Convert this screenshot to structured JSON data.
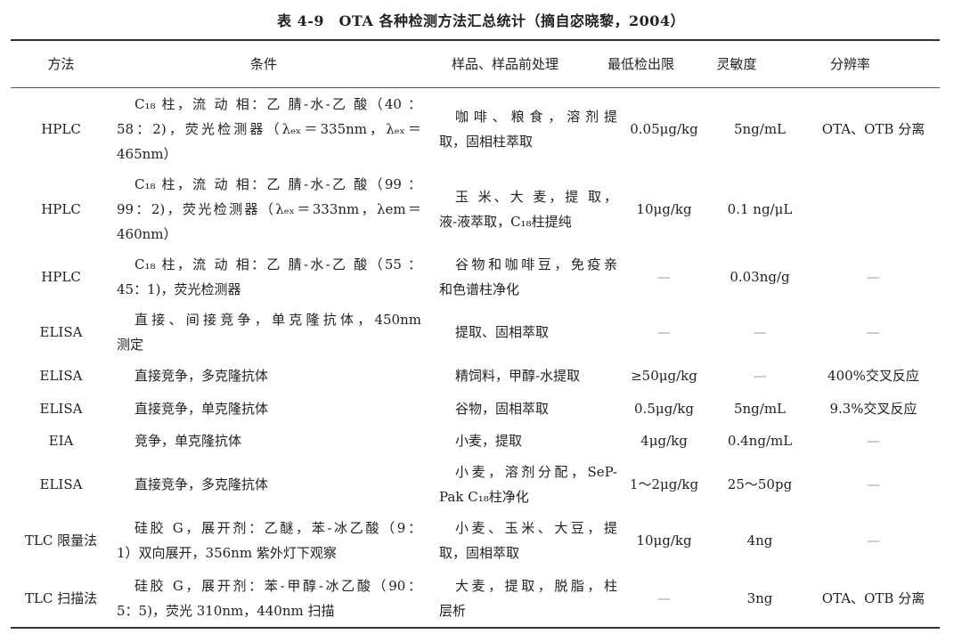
{
  "title": "表 4-9　OTA 各种检测方法汇总统计（摘自宓晓黎，2004）",
  "headers": [
    "方法",
    "条件",
    "样品、样品前处理",
    "最低检出限",
    "灵敏度",
    "分辨率"
  ],
  "rows": [
    {
      "method": "HPLC",
      "condition": [
        "C₁₈ 柱，流 动 相：乙 腈-水-乙 酸（40 ：",
        "58：2)，荧光检测器（λₑₓ＝335nm，λₑₓ＝",
        "465nm）"
      ],
      "sample": [
        "咖啡、粮食，溶剂提",
        "取，固相柱萃取"
      ],
      "lod": "0.05μg/kg",
      "sensitivity": "5ng/mL",
      "resolution": "OTA、OTB 分离"
    },
    {
      "method": "HPLC",
      "condition": [
        "C₁₈ 柱，流 动 相：乙 腈-水-乙 酸（99 ：",
        "99：2)，荧光检测器（λₑₓ＝333nm，λem＝",
        "460nm）"
      ],
      "sample": [
        "玉 米、大 麦，提 取，",
        "液-液萃取，C₁₈柱提纯"
      ],
      "lod": "10μg/kg",
      "sensitivity": "0.1 ng/μL",
      "resolution": ""
    },
    {
      "method": "HPLC",
      "condition": [
        "C₁₈ 柱，流 动 相：乙 腈-水-乙 酸（55 ：",
        "45：1)，荧光检测器"
      ],
      "sample": [
        "谷物和咖啡豆，免疫亲",
        "和色谱柱净化"
      ],
      "lod": "—",
      "sensitivity": "0.03ng/g",
      "resolution": "—"
    },
    {
      "method": "ELISA",
      "condition": [
        "直接、间接竞争，单克隆抗体，450nm",
        "测定"
      ],
      "sample": [
        "提取、固相萃取"
      ],
      "lod": "—",
      "sensitivity": "—",
      "resolution": "—"
    },
    {
      "method": "ELISA",
      "condition": [
        "直接竞争，多克隆抗体"
      ],
      "sample": [
        "精饲料，甲醇-水提取"
      ],
      "lod": "≥50μg/kg",
      "sensitivity": "—",
      "resolution": "400%交叉反应"
    },
    {
      "method": "ELISA",
      "condition": [
        "直接竞争，单克隆抗体"
      ],
      "sample": [
        "谷物，固相萃取"
      ],
      "lod": "0.5μg/kg",
      "sensitivity": "5ng/mL",
      "resolution": "9.3%交叉反应"
    },
    {
      "method": "EIA",
      "condition": [
        "竞争，单克隆抗体"
      ],
      "sample": [
        "小麦，提取"
      ],
      "lod": "4μg/kg",
      "sensitivity": "0.4ng/mL",
      "resolution": "—"
    },
    {
      "method": "ELISA",
      "condition": [
        "直接竞争，多克隆抗体"
      ],
      "sample": [
        "小麦，溶剂分配，SeP-",
        "Pak C₁₈柱净化"
      ],
      "lod": "1～2μg/kg",
      "sensitivity": "25～50pg",
      "resolution": "—"
    },
    {
      "method": "TLC 限量法",
      "condition": [
        "硅胶 G，展开剂：乙醚，苯-冰乙酸（9：",
        "1）双向展开，356nm 紫外灯下观察"
      ],
      "sample": [
        "小麦、玉米、大豆，提",
        "取，固相萃取"
      ],
      "lod": "10μg/kg",
      "sensitivity": "4ng",
      "resolution": "—"
    },
    {
      "method": "TLC 扫描法",
      "condition": [
        "硅胶 G，展开剂：苯-甲醇-冰乙酸（90：",
        "5：5)，荧光 310nm，440nm 扫描"
      ],
      "sample": [
        "大麦，提取，脱脂，柱",
        "层析"
      ],
      "lod": "—",
      "sensitivity": "3ng",
      "resolution": "OTA、OTB 分离"
    }
  ]
}
